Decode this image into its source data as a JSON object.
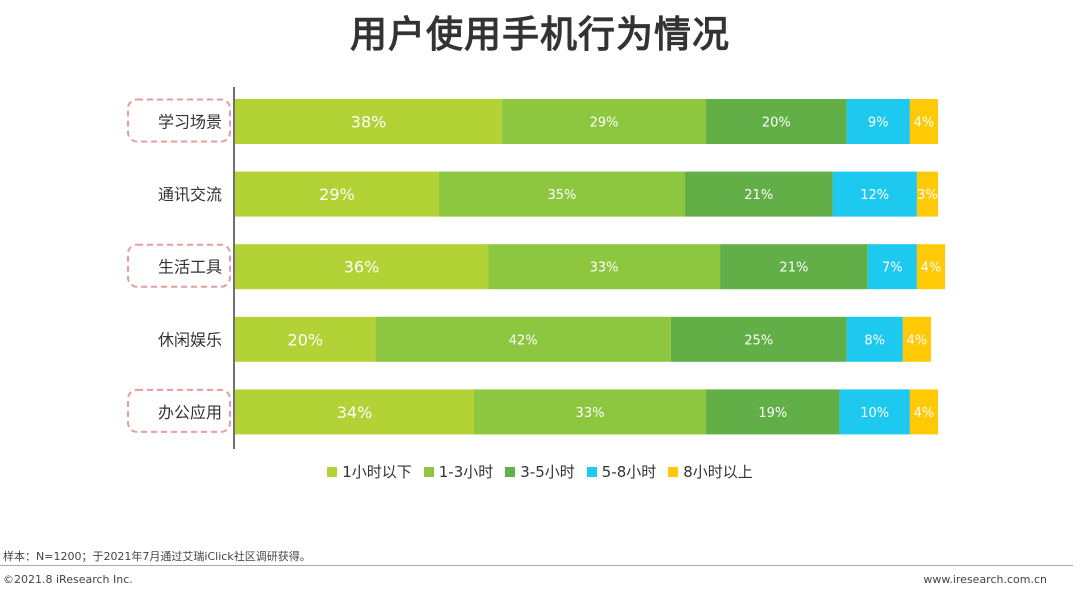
{
  "title": "用户使用手机行为情况",
  "chart_data": {
    "type": "bar",
    "orientation": "horizontal",
    "stacked": true,
    "categories": [
      "学习场景",
      "通讯交流",
      "生活工具",
      "休闲娱乐",
      "办公应用"
    ],
    "highlighted_categories": [
      "学习场景",
      "生活工具",
      "办公应用"
    ],
    "series": [
      {
        "name": "1小时以下",
        "color": "#b2d235",
        "values": [
          38,
          29,
          36,
          20,
          34
        ]
      },
      {
        "name": "1-3小时",
        "color": "#8dc63f",
        "values": [
          29,
          35,
          33,
          42,
          33
        ]
      },
      {
        "name": "3-5小时",
        "color": "#62ae47",
        "values": [
          20,
          21,
          21,
          25,
          19
        ]
      },
      {
        "name": "5-8小时",
        "color": "#1ec9ef",
        "values": [
          9,
          12,
          7,
          8,
          10
        ]
      },
      {
        "name": "8小时以上",
        "color": "#ffc905",
        "values": [
          4,
          3,
          4,
          4,
          4
        ]
      }
    ],
    "value_suffix": "%",
    "legend_position": "bottom",
    "grid": false
  },
  "footer": {
    "note": "样本：N=1200；于2021年7月通过艾瑞iClick社区调研获得。",
    "copyright": "©2021.8 iResearch Inc.",
    "site": "www.iresearch.com.cn"
  }
}
